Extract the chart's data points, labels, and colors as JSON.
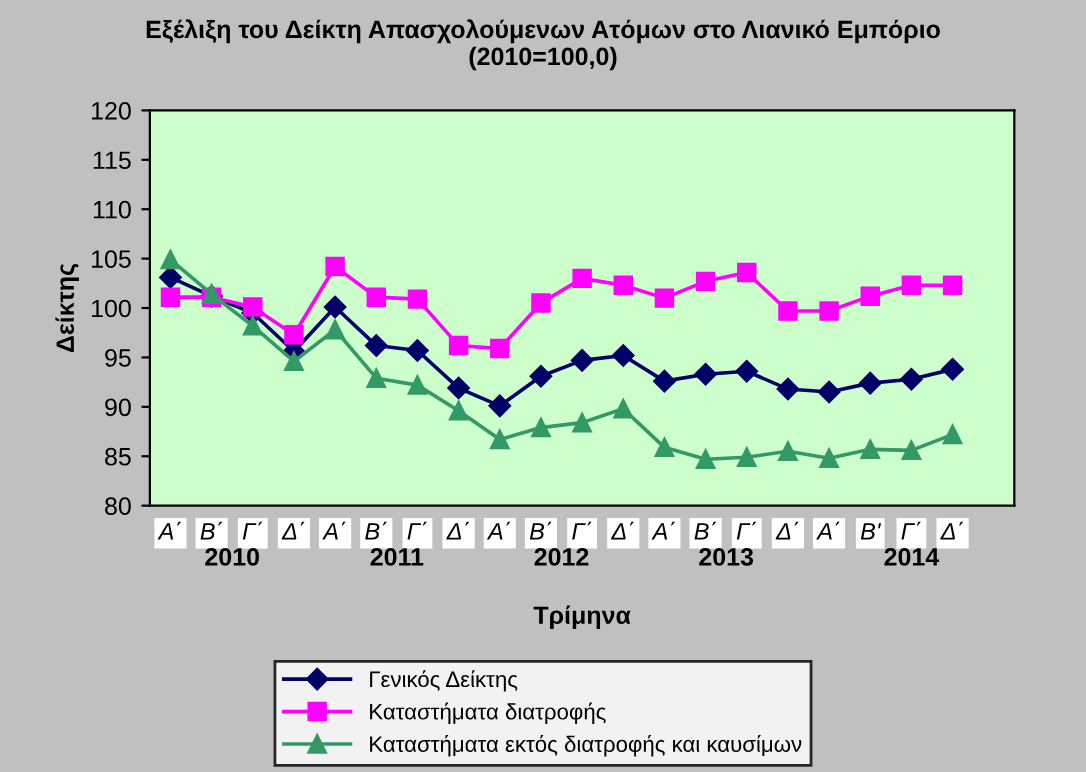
{
  "chart_data": {
    "type": "line",
    "title": "Εξέλιξη του Δείκτη Απασχολούμενων Ατόμων στο Λιανικό Εμπόριο\n(2010=100,0)",
    "xlabel": "Τρίμηνα",
    "ylabel": "Δείκτης",
    "categories": [
      "Α΄",
      "Β΄",
      "Γ΄",
      "Δ΄",
      "Α΄",
      "Β΄",
      "Γ΄",
      "Δ΄",
      "Α΄",
      "Β΄",
      "Γ΄",
      "Δ΄",
      "Α΄",
      "Β΄",
      "Γ΄",
      "Δ΄",
      "Α΄",
      "Β'",
      "Γ΄",
      "Δ΄",
      null
    ],
    "annotations": [
      "2010",
      "2011",
      "2012",
      "2013",
      "2014"
    ],
    "series": [
      {
        "name": "Γενικός Δείκτης",
        "color": "#000066",
        "marker": "diamond",
        "values": [
          103.1,
          101.2,
          99.5,
          95.6,
          100.1,
          96.2,
          95.7,
          91.9,
          90.1,
          93.1,
          94.7,
          95.2,
          92.6,
          93.3,
          93.6,
          91.8,
          91.5,
          92.4,
          92.8,
          93.8,
          null
        ]
      },
      {
        "name": "Καταστήματα διατροφής",
        "color": "#ff00ff",
        "marker": "square",
        "values": [
          101.1,
          101.1,
          100.1,
          97.3,
          104.2,
          101.1,
          100.9,
          96.2,
          95.9,
          100.5,
          103.0,
          102.3,
          101.0,
          102.7,
          103.6,
          99.7,
          99.7,
          101.2,
          102.3,
          102.3,
          null
        ]
      },
      {
        "name": "Καταστήματα εκτός διατροφής και καυσίμων",
        "color": "#339966",
        "marker": "triangle",
        "values": [
          104.9,
          101.4,
          98.2,
          94.6,
          97.8,
          92.9,
          92.2,
          89.6,
          86.7,
          87.9,
          88.4,
          89.8,
          85.9,
          84.7,
          84.9,
          85.5,
          84.8,
          85.7,
          85.6,
          87.2,
          null
        ]
      }
    ],
    "ylim": [
      80,
      120
    ],
    "yticks": [
      80,
      85,
      90,
      95,
      100,
      105,
      110,
      115,
      120
    ],
    "grid": false,
    "legend": "bottom",
    "line_style": "solid"
  }
}
